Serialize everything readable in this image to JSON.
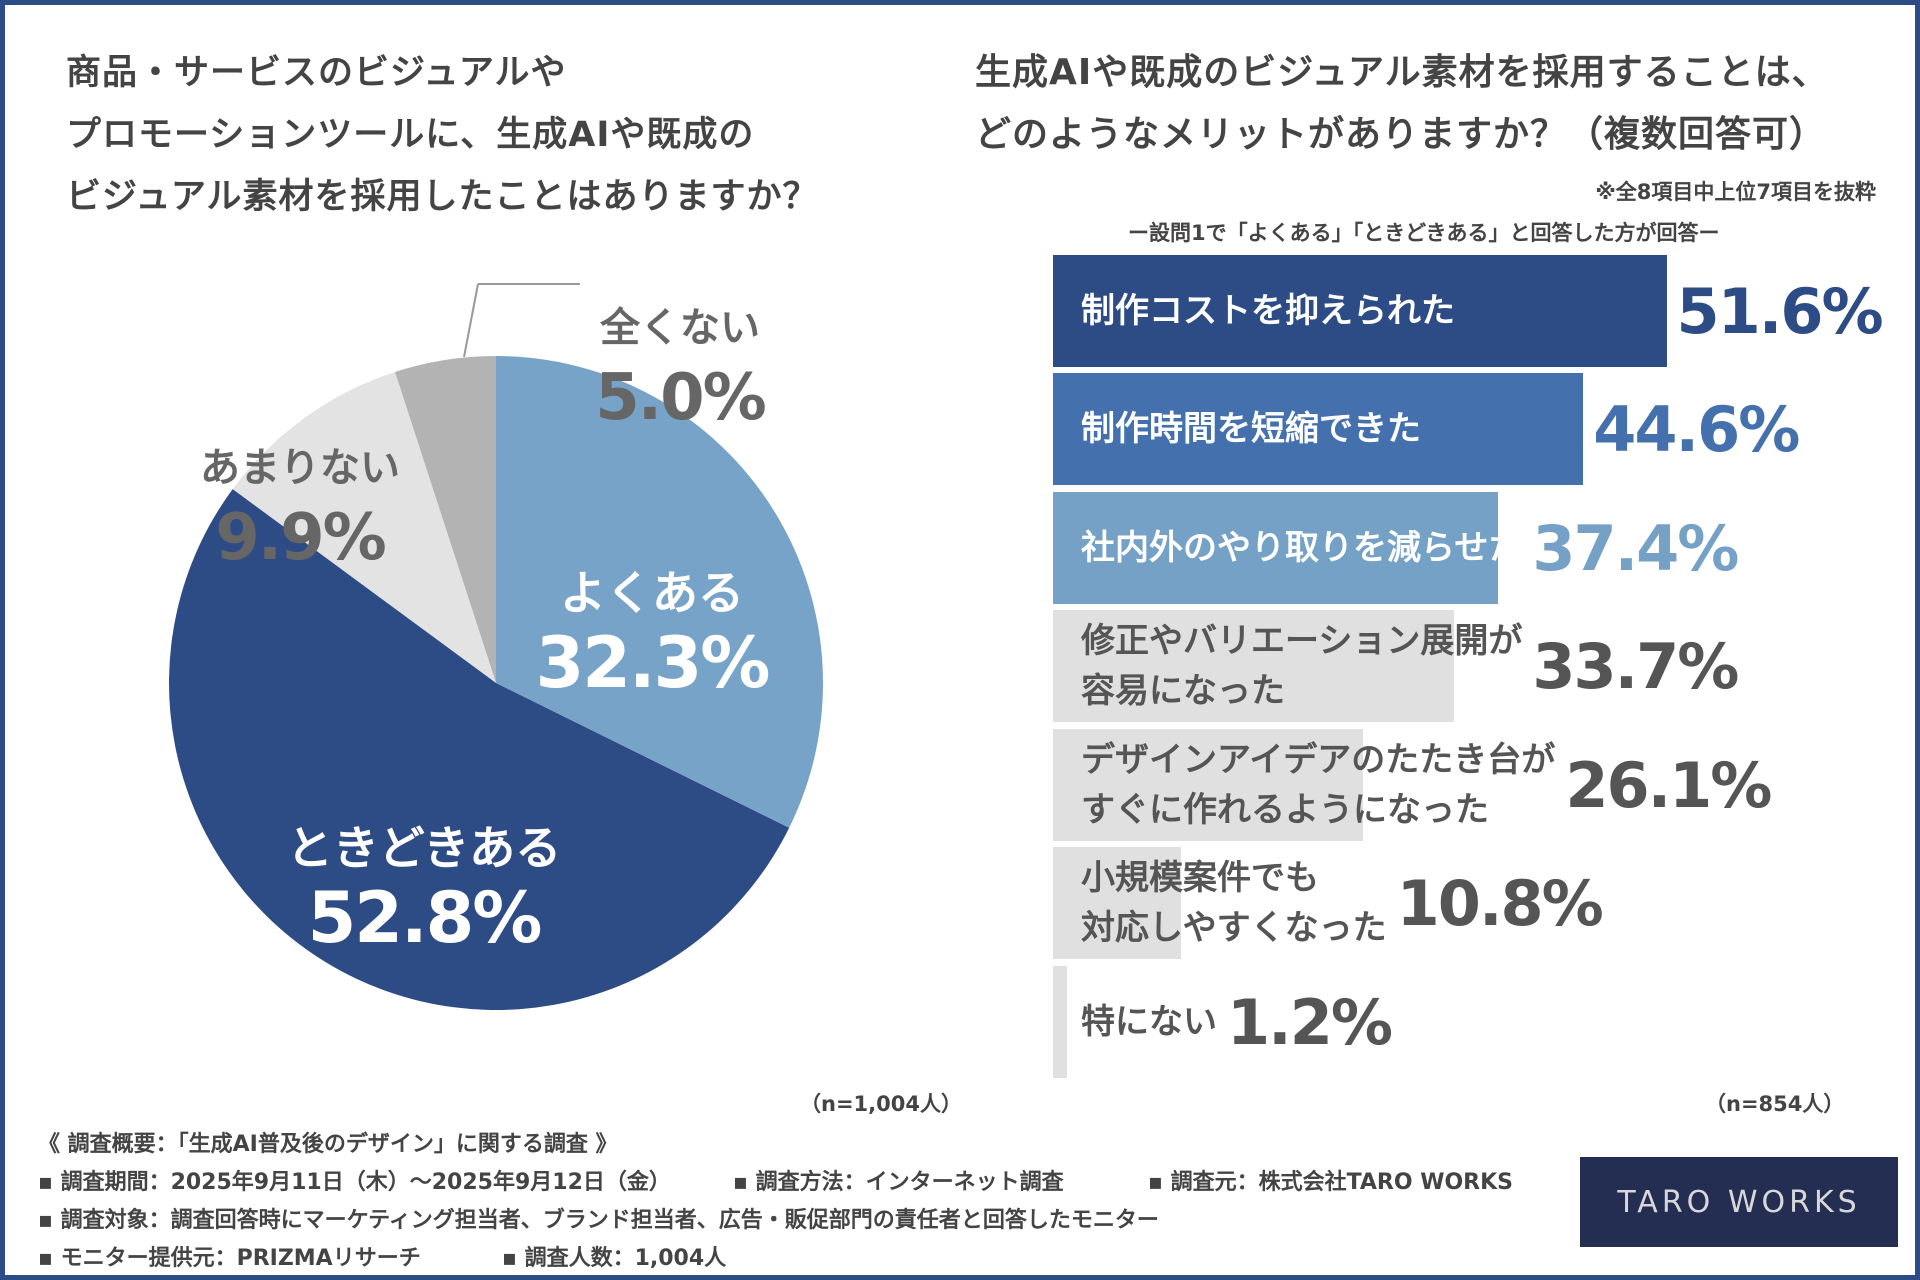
{
  "left_title": "商品・サービスのビジュアルや\nプロモーションツールに、生成AIや既成の\nビジュアル素材を採用したことはありますか？",
  "right_title": "生成AIや既成のビジュアル素材を採用することは、\nどのようなメリットがありますか？（複数回答可）",
  "right_note": "※全8項目中上位7項目を抜粋",
  "right_subnote": "ー設問1で「よくある」「ときどきある」と回答した方が回答ー",
  "left_n": "（n=1,004人）",
  "right_n": "（n=854人）",
  "chart_data": [
    {
      "type": "pie",
      "start": "top",
      "direction": "clockwise",
      "slices": [
        {
          "label": "よくある",
          "value": 32.3,
          "value_label": "32.3%",
          "color": "#78a3c8"
        },
        {
          "label": "ときどきある",
          "value": 52.8,
          "value_label": "52.8%",
          "color": "#2d4b85"
        },
        {
          "label": "あまりない",
          "value": 9.9,
          "value_label": "9.9%",
          "color": "#e3e3e3"
        },
        {
          "label": "全くない",
          "value": 5.0,
          "value_label": "5.0%",
          "color": "#b3b3b3"
        }
      ]
    },
    {
      "type": "bar",
      "orientation": "horizontal",
      "bars": [
        {
          "label": "制作コストを抑えられた",
          "value": 51.6,
          "value_label": "51.6%",
          "color": "#2d4b85",
          "text_color": "#ffffff",
          "value_color": "#2d4b85"
        },
        {
          "label": "制作時間を短縮できた",
          "value": 44.6,
          "value_label": "44.6%",
          "color": "#4470ad",
          "text_color": "#ffffff",
          "value_color": "#4470ad"
        },
        {
          "label": "社内外のやり取りを減らせた",
          "value": 37.4,
          "value_label": "37.4%",
          "color": "#75a1c7",
          "text_color": "#ffffff",
          "value_color": "#75a1c7"
        },
        {
          "label": "修正やバリエーション展開が\n容易になった",
          "value": 33.7,
          "value_label": "33.7%",
          "color": "#e0e0e0",
          "text_color": "#555555",
          "value_color": "#555555"
        },
        {
          "label": "デザインアイデアのたたき台が\nすぐに作れるようになった",
          "value": 26.1,
          "value_label": "26.1%",
          "color": "#e0e0e0",
          "text_color": "#555555",
          "value_color": "#555555"
        },
        {
          "label": "小規模案件でも\n対応しやすくなった",
          "value": 10.8,
          "value_label": "10.8%",
          "color": "#e0e0e0",
          "text_color": "#555555",
          "value_color": "#555555"
        },
        {
          "label": "特にない",
          "value": 1.2,
          "value_label": "1.2%",
          "color": "#e0e0e0",
          "text_color": "#555555",
          "value_color": "#555555"
        }
      ]
    }
  ],
  "footer": {
    "heading": "《 調査概要：「生成AI普及後のデザイン」に関する調査 》",
    "period": "▪ 調査期間：2025年9月11日（木）～2025年9月12日（金）",
    "method": "▪ 調査方法：インターネット調査",
    "source": "▪ 調査元：株式会社TARO WORKS",
    "target": "▪ 調査対象：調査回答時にマーケティング担当者、ブランド担当者、広告・販促部門の責任者と回答したモニター",
    "provider": "▪ モニター提供元：PRIZMAリサーチ",
    "count": "▪ 調査人数：1,004人"
  },
  "logo": "TARO WORKS"
}
